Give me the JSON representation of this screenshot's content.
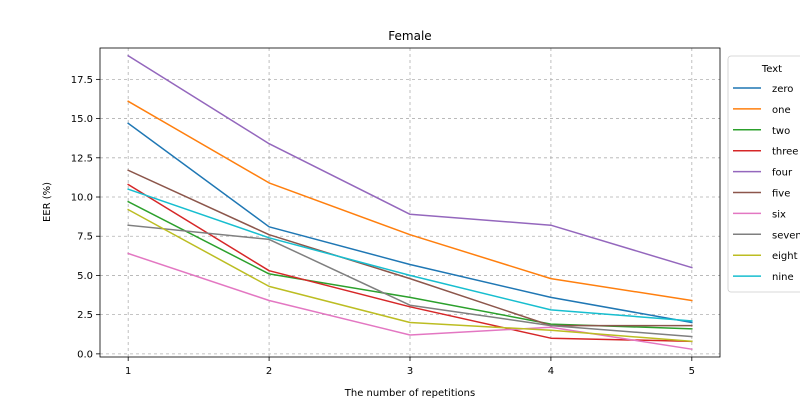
{
  "chart_data": {
    "type": "line",
    "title": "Female",
    "xlabel": "The number of repetitions",
    "ylabel": "EER (%)",
    "x": [
      1,
      2,
      3,
      4,
      5
    ],
    "xticks": [
      "1",
      "2",
      "3",
      "4",
      "5"
    ],
    "yticks": [
      "0.0",
      "2.5",
      "5.0",
      "7.5",
      "10.0",
      "12.5",
      "15.0",
      "17.5"
    ],
    "ylim": [
      -0.2,
      19.5
    ],
    "xlim": [
      0.8,
      5.2
    ],
    "grid": true,
    "legend": {
      "title": "Text",
      "placement": "outside-right-top"
    },
    "series": [
      {
        "name": "zero",
        "color": "#1f77b4",
        "values": [
          14.7,
          8.1,
          5.7,
          3.6,
          2.0
        ]
      },
      {
        "name": "one",
        "color": "#ff7f0e",
        "values": [
          16.1,
          10.9,
          7.6,
          4.8,
          3.4
        ]
      },
      {
        "name": "two",
        "color": "#2ca02c",
        "values": [
          9.7,
          5.1,
          3.6,
          1.9,
          1.6
        ]
      },
      {
        "name": "three",
        "color": "#d62728",
        "values": [
          10.8,
          5.3,
          3.0,
          1.0,
          0.8
        ]
      },
      {
        "name": "four",
        "color": "#9467bd",
        "values": [
          19.0,
          13.4,
          8.9,
          8.2,
          5.5
        ]
      },
      {
        "name": "five",
        "color": "#8c564b",
        "values": [
          11.7,
          7.6,
          4.8,
          1.8,
          1.8
        ]
      },
      {
        "name": "six",
        "color": "#e377c2",
        "values": [
          6.4,
          3.4,
          1.2,
          1.7,
          0.3
        ]
      },
      {
        "name": "seven",
        "color": "#7f7f7f",
        "values": [
          8.2,
          7.3,
          3.1,
          1.8,
          1.1
        ]
      },
      {
        "name": "eight",
        "color": "#bcbd22",
        "values": [
          9.2,
          4.3,
          2.0,
          1.5,
          0.8
        ]
      },
      {
        "name": "nine",
        "color": "#17becf",
        "values": [
          10.5,
          7.4,
          5.0,
          2.8,
          2.1
        ]
      }
    ]
  }
}
